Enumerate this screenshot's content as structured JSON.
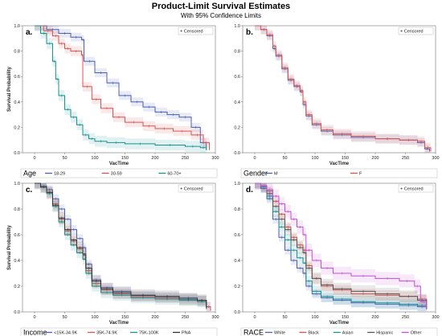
{
  "title": "Product-Limit Survival Estimates",
  "subtitle": "With 95% Confidence Limits",
  "colors": {
    "blue": "#4a5fb5",
    "red": "#d9534f",
    "teal": "#17928f",
    "black": "#333333",
    "magenta": "#c050d8",
    "gray": "#555555"
  },
  "chart_data": [
    {
      "type": "line",
      "panel_label": "a.",
      "xlabel": "VacTime",
      "ylabel": "Survival Probability",
      "xlim": [
        -20,
        300
      ],
      "ylim": [
        0,
        1.0
      ],
      "xticks": [
        0,
        50,
        100,
        150,
        200,
        250,
        300
      ],
      "yticks": [
        0.0,
        0.2,
        0.4,
        0.6,
        0.8,
        1.0
      ],
      "censor_legend": "+ Censored",
      "legend_title": "Age",
      "series": [
        {
          "name": "18-29",
          "color": "blue",
          "x": [
            0,
            20,
            40,
            60,
            78,
            82,
            100,
            120,
            140,
            160,
            180,
            200,
            220,
            240,
            260,
            275,
            285
          ],
          "y": [
            1.0,
            0.97,
            0.94,
            0.91,
            0.89,
            0.72,
            0.63,
            0.55,
            0.45,
            0.4,
            0.36,
            0.32,
            0.3,
            0.28,
            0.2,
            0.08,
            0.02
          ]
        },
        {
          "name": "30-59",
          "color": "red",
          "x": [
            0,
            15,
            30,
            40,
            50,
            60,
            78,
            80,
            95,
            110,
            130,
            150,
            180,
            200,
            230,
            260,
            280,
            290
          ],
          "y": [
            1.0,
            0.96,
            0.92,
            0.86,
            0.82,
            0.8,
            0.77,
            0.52,
            0.42,
            0.35,
            0.28,
            0.24,
            0.21,
            0.19,
            0.17,
            0.14,
            0.08,
            0.02
          ]
        },
        {
          "name": "60-70+",
          "color": "teal",
          "x": [
            0,
            10,
            20,
            30,
            35,
            40,
            50,
            60,
            70,
            80,
            90,
            100,
            120,
            150,
            200,
            250,
            275,
            285
          ],
          "y": [
            1.0,
            0.94,
            0.86,
            0.72,
            0.58,
            0.45,
            0.34,
            0.28,
            0.22,
            0.14,
            0.11,
            0.09,
            0.08,
            0.07,
            0.06,
            0.05,
            0.04,
            0.02
          ]
        }
      ]
    },
    {
      "type": "line",
      "panel_label": "b.",
      "xlabel": "VacTime",
      "ylabel": "",
      "xlim": [
        -20,
        300
      ],
      "ylim": [
        0,
        1.0
      ],
      "xticks": [
        0,
        50,
        100,
        150,
        200,
        250,
        300
      ],
      "yticks": [
        0.0,
        0.2,
        0.4,
        0.6,
        0.8,
        1.0
      ],
      "censor_legend": "+ Censored",
      "legend_title": "Gender",
      "series": [
        {
          "name": "M",
          "color": "blue",
          "x": [
            0,
            10,
            20,
            30,
            35,
            45,
            55,
            65,
            75,
            80,
            85,
            95,
            110,
            130,
            160,
            200,
            240,
            270,
            282,
            290
          ],
          "y": [
            1.0,
            0.97,
            0.92,
            0.82,
            0.76,
            0.66,
            0.57,
            0.52,
            0.48,
            0.38,
            0.29,
            0.22,
            0.17,
            0.14,
            0.12,
            0.11,
            0.1,
            0.08,
            0.03,
            0.01
          ]
        },
        {
          "name": "F",
          "color": "red",
          "x": [
            0,
            10,
            20,
            30,
            35,
            45,
            55,
            65,
            75,
            80,
            85,
            95,
            110,
            130,
            160,
            200,
            240,
            270,
            282,
            292
          ],
          "y": [
            1.0,
            0.97,
            0.93,
            0.84,
            0.77,
            0.67,
            0.58,
            0.53,
            0.49,
            0.4,
            0.3,
            0.23,
            0.18,
            0.15,
            0.13,
            0.11,
            0.1,
            0.09,
            0.04,
            0.01
          ]
        }
      ]
    },
    {
      "type": "line",
      "panel_label": "c.",
      "xlabel": "VacTime",
      "ylabel": "Survival Probability",
      "xlim": [
        -20,
        300
      ],
      "ylim": [
        0,
        1.0
      ],
      "xticks": [
        0,
        50,
        100,
        150,
        200,
        250,
        300
      ],
      "yticks": [
        0.0,
        0.2,
        0.4,
        0.6,
        0.8,
        1.0
      ],
      "censor_legend": "+ Censored",
      "legend_title": "Income",
      "series": [
        {
          "name": "<15K-34.9K",
          "color": "blue",
          "x": [
            0,
            10,
            20,
            30,
            40,
            50,
            60,
            70,
            80,
            85,
            95,
            110,
            130,
            160,
            200,
            240,
            270,
            285,
            292
          ],
          "y": [
            1.0,
            0.98,
            0.95,
            0.88,
            0.8,
            0.72,
            0.64,
            0.57,
            0.5,
            0.37,
            0.25,
            0.19,
            0.16,
            0.13,
            0.12,
            0.11,
            0.09,
            0.04,
            0.01
          ]
        },
        {
          "name": "35K-74.9K",
          "color": "red",
          "x": [
            0,
            10,
            20,
            30,
            40,
            50,
            60,
            70,
            80,
            85,
            95,
            110,
            130,
            160,
            200,
            240,
            270,
            285,
            292
          ],
          "y": [
            1.0,
            0.97,
            0.93,
            0.84,
            0.72,
            0.63,
            0.55,
            0.49,
            0.44,
            0.32,
            0.22,
            0.17,
            0.14,
            0.12,
            0.11,
            0.1,
            0.09,
            0.04,
            0.01
          ]
        },
        {
          "name": "75K-100K",
          "color": "teal",
          "x": [
            0,
            10,
            20,
            30,
            40,
            50,
            60,
            70,
            80,
            85,
            95,
            110,
            130,
            160,
            200,
            240,
            270,
            285
          ],
          "y": [
            1.0,
            0.97,
            0.92,
            0.82,
            0.7,
            0.6,
            0.52,
            0.46,
            0.41,
            0.3,
            0.2,
            0.15,
            0.13,
            0.11,
            0.1,
            0.09,
            0.08,
            0.02
          ]
        },
        {
          "name": "PNA",
          "color": "black",
          "x": [
            0,
            10,
            20,
            30,
            40,
            50,
            60,
            70,
            80,
            85,
            95,
            110,
            130,
            160,
            200,
            240,
            270,
            285
          ],
          "y": [
            1.0,
            0.97,
            0.93,
            0.83,
            0.73,
            0.64,
            0.56,
            0.5,
            0.45,
            0.34,
            0.24,
            0.18,
            0.15,
            0.13,
            0.12,
            0.1,
            0.09,
            0.03
          ]
        }
      ]
    },
    {
      "type": "line",
      "panel_label": "d.",
      "xlabel": "VacTime",
      "ylabel": "",
      "xlim": [
        -20,
        300
      ],
      "ylim": [
        0,
        1.0
      ],
      "xticks": [
        0,
        50,
        100,
        150,
        200,
        250,
        300
      ],
      "yticks": [
        0.0,
        0.2,
        0.4,
        0.6,
        0.8,
        1.0
      ],
      "censor_legend": "+ Censored",
      "legend_title": "RACE",
      "series": [
        {
          "name": "White",
          "color": "blue",
          "x": [
            0,
            10,
            20,
            30,
            40,
            50,
            60,
            70,
            80,
            85,
            95,
            110,
            130,
            160,
            200,
            240,
            270,
            285
          ],
          "y": [
            1.0,
            0.96,
            0.88,
            0.72,
            0.58,
            0.48,
            0.4,
            0.34,
            0.3,
            0.2,
            0.14,
            0.11,
            0.09,
            0.07,
            0.06,
            0.05,
            0.04,
            0.02
          ]
        },
        {
          "name": "Black",
          "color": "red",
          "x": [
            0,
            10,
            20,
            30,
            40,
            50,
            60,
            70,
            80,
            85,
            95,
            110,
            130,
            160,
            200,
            240,
            270,
            285
          ],
          "y": [
            1.0,
            0.98,
            0.94,
            0.86,
            0.76,
            0.66,
            0.58,
            0.52,
            0.48,
            0.36,
            0.26,
            0.2,
            0.17,
            0.14,
            0.13,
            0.12,
            0.1,
            0.04
          ]
        },
        {
          "name": "Asian",
          "color": "teal",
          "x": [
            0,
            10,
            20,
            30,
            40,
            50,
            60,
            70,
            80,
            85,
            95,
            110,
            130,
            160,
            200,
            240,
            270,
            285
          ],
          "y": [
            1.0,
            0.97,
            0.9,
            0.78,
            0.66,
            0.56,
            0.48,
            0.42,
            0.38,
            0.24,
            0.16,
            0.12,
            0.1,
            0.08,
            0.07,
            0.06,
            0.05,
            0.02
          ]
        },
        {
          "name": "Hispanic",
          "color": "gray",
          "x": [
            0,
            10,
            20,
            30,
            40,
            50,
            60,
            70,
            80,
            85,
            95,
            110,
            130,
            160,
            200,
            240,
            270,
            285
          ],
          "y": [
            1.0,
            0.98,
            0.92,
            0.82,
            0.72,
            0.64,
            0.56,
            0.5,
            0.46,
            0.34,
            0.26,
            0.21,
            0.18,
            0.16,
            0.14,
            0.12,
            0.09,
            0.03
          ]
        },
        {
          "name": "Other",
          "color": "magenta",
          "x": [
            0,
            10,
            20,
            30,
            40,
            50,
            60,
            70,
            80,
            85,
            95,
            110,
            130,
            160,
            200,
            240,
            265,
            275,
            285
          ],
          "y": [
            1.0,
            0.98,
            0.95,
            0.9,
            0.84,
            0.78,
            0.72,
            0.66,
            0.6,
            0.48,
            0.4,
            0.34,
            0.3,
            0.28,
            0.26,
            0.24,
            0.2,
            0.08,
            0.02
          ]
        }
      ]
    }
  ]
}
